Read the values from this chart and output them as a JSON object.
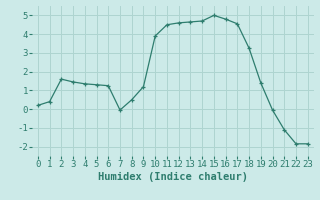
{
  "x": [
    0,
    1,
    2,
    3,
    4,
    5,
    6,
    7,
    8,
    9,
    10,
    11,
    12,
    13,
    14,
    15,
    16,
    17,
    18,
    19,
    20,
    21,
    22,
    23
  ],
  "y": [
    0.2,
    0.4,
    1.6,
    1.45,
    1.35,
    1.3,
    1.25,
    -0.05,
    0.5,
    1.2,
    3.9,
    4.5,
    4.6,
    4.65,
    4.7,
    5.0,
    4.8,
    4.55,
    3.25,
    1.4,
    -0.05,
    -1.1,
    -1.85,
    -1.85
  ],
  "line_color": "#2e7d6e",
  "marker": "+",
  "bg_color": "#cceae8",
  "grid_color": "#aed4d0",
  "xlabel": "Humidex (Indice chaleur)",
  "xlim": [
    -0.5,
    23.5
  ],
  "ylim": [
    -2.5,
    5.5
  ],
  "yticks": [
    -2,
    -1,
    0,
    1,
    2,
    3,
    4,
    5
  ],
  "xticks": [
    0,
    1,
    2,
    3,
    4,
    5,
    6,
    7,
    8,
    9,
    10,
    11,
    12,
    13,
    14,
    15,
    16,
    17,
    18,
    19,
    20,
    21,
    22,
    23
  ],
  "tick_label_fontsize": 6.5,
  "xlabel_fontsize": 7.5
}
